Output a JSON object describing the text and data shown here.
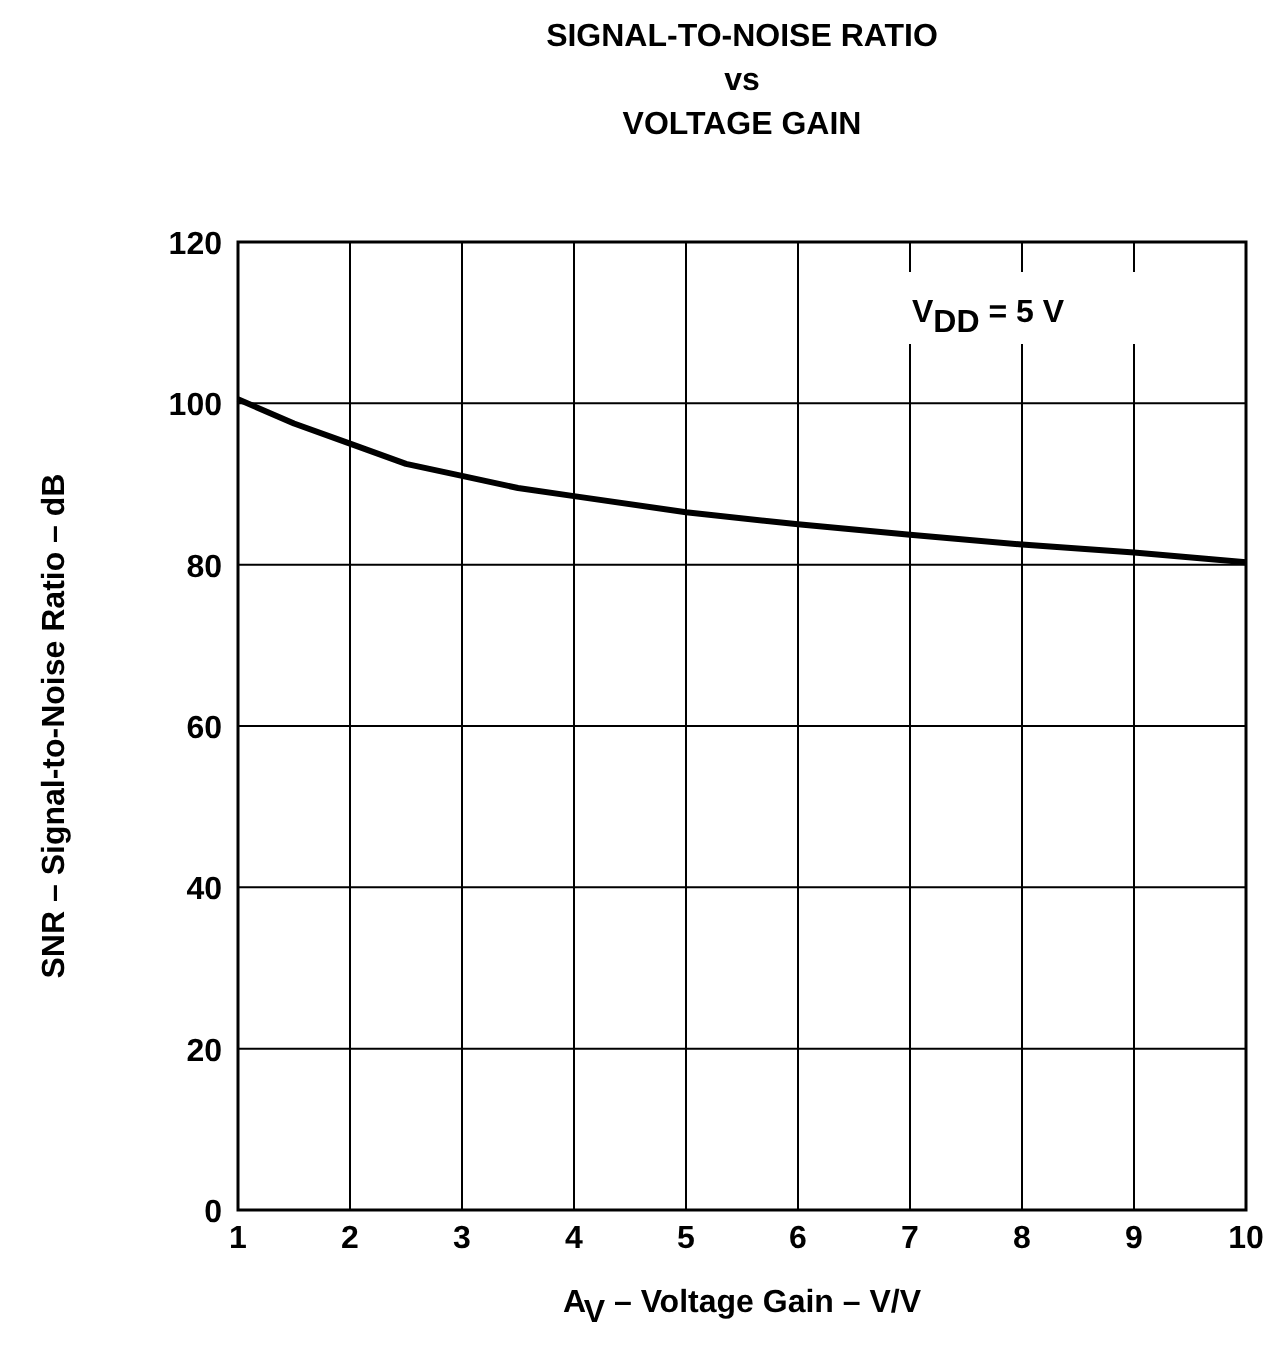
{
  "chart_data": {
    "type": "line",
    "title": "SIGNAL-TO-NOISE RATIO\nvs\nVOLTAGE GAIN",
    "xlabel": "A$_{V}$ – Voltage Gain – V/V",
    "ylabel": "SNR – Signal-to-Noise Ratio – dB",
    "x": [
      1,
      1.5,
      2,
      2.5,
      3,
      3.5,
      4,
      5,
      6,
      7,
      8,
      9,
      10
    ],
    "series": [
      {
        "color": "#000000",
        "values": [
          100.5,
          97.5,
          95,
          92.5,
          91,
          89.5,
          88.5,
          86.5,
          85,
          83.7,
          82.5,
          81.5,
          80.3
        ]
      }
    ],
    "xlim": [
      1,
      10
    ],
    "xticks": [
      1,
      2,
      3,
      4,
      5,
      6,
      7,
      8,
      9,
      10
    ],
    "ylim": [
      0,
      120
    ],
    "yticks": [
      0,
      20,
      40,
      60,
      80,
      100,
      120
    ],
    "grid": true,
    "line_style": "solid",
    "marker": "none",
    "annotations": [
      "V$_{DD}$ = 5 V"
    ]
  }
}
